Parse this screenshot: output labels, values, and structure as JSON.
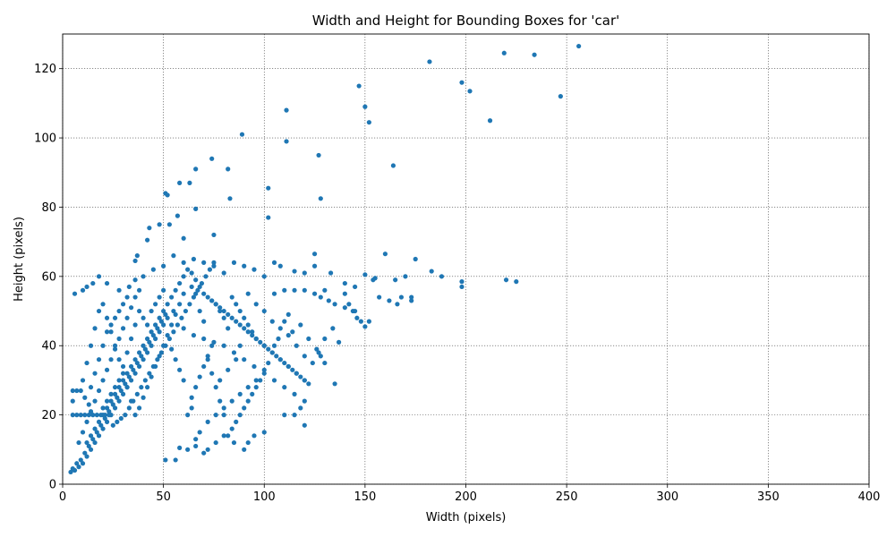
{
  "chart_data": {
    "type": "scatter",
    "title": "Width and Height for Bounding Boxes for 'car'",
    "xlabel": "Width (pixels)",
    "ylabel": "Height (pixels)",
    "xlim": [
      0,
      400
    ],
    "ylim": [
      0,
      130
    ],
    "xticks": [
      "0",
      "50",
      "100",
      "150",
      "200",
      "250",
      "300",
      "350",
      "400"
    ],
    "yticks": [
      "0",
      "20",
      "40",
      "60",
      "80",
      "100",
      "120"
    ],
    "grid": true,
    "marker_color": "#1f77b4",
    "points": [
      [
        256,
        126.5
      ],
      [
        219,
        124.5
      ],
      [
        234,
        124
      ],
      [
        182,
        122
      ],
      [
        147,
        115
      ],
      [
        198,
        116
      ],
      [
        202,
        113.5
      ],
      [
        247,
        112
      ],
      [
        150,
        109
      ],
      [
        111,
        108
      ],
      [
        212,
        105
      ],
      [
        152,
        104.5
      ],
      [
        89,
        101
      ],
      [
        111,
        99
      ],
      [
        74,
        94
      ],
      [
        127,
        95
      ],
      [
        66,
        91
      ],
      [
        82,
        91
      ],
      [
        164,
        92
      ],
      [
        58,
        87
      ],
      [
        63,
        87
      ],
      [
        51,
        84
      ],
      [
        52,
        83.5
      ],
      [
        102,
        85.5
      ],
      [
        83,
        82.5
      ],
      [
        128,
        82.5
      ],
      [
        66,
        79.5
      ],
      [
        57,
        77.5
      ],
      [
        102,
        77
      ],
      [
        43,
        74
      ],
      [
        53,
        75
      ],
      [
        48,
        75
      ],
      [
        75,
        72
      ],
      [
        60,
        71
      ],
      [
        42,
        70.5
      ],
      [
        37,
        66
      ],
      [
        36,
        64.5
      ],
      [
        170,
        60
      ],
      [
        183,
        61.5
      ],
      [
        188,
        60
      ],
      [
        198,
        58.5
      ],
      [
        198,
        57
      ],
      [
        220,
        59
      ],
      [
        225,
        58.5
      ],
      [
        175,
        65
      ],
      [
        160,
        66.5
      ],
      [
        150,
        60.5
      ],
      [
        155,
        59.5
      ],
      [
        165,
        59
      ],
      [
        140,
        58
      ],
      [
        145,
        57
      ],
      [
        130,
        56
      ],
      [
        133,
        61
      ],
      [
        125,
        63
      ],
      [
        125,
        66.5
      ],
      [
        120,
        61
      ],
      [
        115,
        61.5
      ],
      [
        108,
        63
      ],
      [
        105,
        64
      ],
      [
        6,
        55
      ],
      [
        10,
        56
      ],
      [
        12,
        57
      ],
      [
        15,
        58
      ],
      [
        18,
        60
      ],
      [
        22,
        58
      ],
      [
        28,
        56
      ],
      [
        33,
        57
      ],
      [
        36,
        59
      ],
      [
        40,
        60
      ],
      [
        45,
        62
      ],
      [
        50,
        63
      ],
      [
        55,
        66
      ],
      [
        60,
        64
      ],
      [
        65,
        65
      ],
      [
        70,
        64
      ],
      [
        75,
        63
      ],
      [
        80,
        61
      ],
      [
        85,
        64
      ],
      [
        90,
        63
      ],
      [
        95,
        62
      ],
      [
        100,
        60
      ],
      [
        92,
        55
      ],
      [
        96,
        52
      ],
      [
        100,
        50
      ],
      [
        104,
        47
      ],
      [
        108,
        45
      ],
      [
        112,
        43
      ],
      [
        116,
        40
      ],
      [
        120,
        37
      ],
      [
        124,
        35
      ],
      [
        127,
        38
      ],
      [
        130,
        42
      ],
      [
        134,
        45
      ],
      [
        137,
        41
      ],
      [
        135,
        29
      ],
      [
        60,
        45
      ],
      [
        65,
        43
      ],
      [
        70,
        42
      ],
      [
        75,
        41
      ],
      [
        80,
        40
      ],
      [
        85,
        38
      ],
      [
        90,
        36
      ],
      [
        95,
        34
      ],
      [
        100,
        32
      ],
      [
        105,
        30
      ],
      [
        110,
        28
      ],
      [
        115,
        26
      ],
      [
        120,
        24
      ],
      [
        100,
        40
      ],
      [
        104,
        38
      ],
      [
        108,
        36
      ],
      [
        112,
        34
      ],
      [
        116,
        32
      ],
      [
        120,
        30
      ],
      [
        115,
        20
      ],
      [
        118,
        22
      ],
      [
        120,
        17
      ],
      [
        110,
        20
      ],
      [
        100,
        15
      ],
      [
        95,
        14
      ],
      [
        92,
        12
      ],
      [
        90,
        10
      ],
      [
        85,
        12
      ],
      [
        80,
        14
      ],
      [
        76,
        12
      ],
      [
        72,
        10
      ],
      [
        70,
        9
      ],
      [
        66,
        11
      ],
      [
        62,
        10
      ],
      [
        58,
        10.5
      ],
      [
        56,
        7
      ],
      [
        51,
        7
      ],
      [
        66,
        13
      ],
      [
        68,
        15
      ],
      [
        72,
        18
      ],
      [
        76,
        20
      ],
      [
        80,
        22
      ],
      [
        84,
        24
      ],
      [
        88,
        26
      ],
      [
        92,
        28
      ],
      [
        96,
        30
      ],
      [
        64,
        25
      ],
      [
        66,
        28
      ],
      [
        68,
        31
      ],
      [
        70,
        34
      ],
      [
        72,
        37
      ],
      [
        74,
        40
      ],
      [
        60,
        30
      ],
      [
        58,
        33
      ],
      [
        56,
        36
      ],
      [
        54,
        39
      ],
      [
        62,
        20
      ],
      [
        64,
        22
      ],
      [
        78,
        30
      ],
      [
        82,
        33
      ],
      [
        86,
        36
      ],
      [
        88,
        40
      ],
      [
        82,
        45
      ],
      [
        80,
        48
      ],
      [
        78,
        50
      ],
      [
        76,
        52
      ],
      [
        74,
        53
      ],
      [
        70,
        47
      ],
      [
        68,
        50
      ],
      [
        66,
        55
      ],
      [
        64,
        57
      ],
      [
        55,
        50
      ],
      [
        52,
        48
      ],
      [
        50,
        46
      ],
      [
        48,
        44
      ],
      [
        46,
        42
      ],
      [
        44,
        40
      ],
      [
        42,
        38
      ],
      [
        40,
        36
      ],
      [
        38,
        34
      ],
      [
        36,
        32
      ],
      [
        34,
        30
      ],
      [
        32,
        28
      ],
      [
        30,
        26
      ],
      [
        28,
        24
      ],
      [
        26,
        22
      ],
      [
        24,
        20
      ],
      [
        22,
        18
      ],
      [
        20,
        16
      ],
      [
        18,
        14
      ],
      [
        16,
        12
      ],
      [
        14,
        10
      ],
      [
        12,
        8
      ],
      [
        10,
        6
      ],
      [
        8,
        5
      ],
      [
        6,
        4
      ],
      [
        4,
        3.5
      ],
      [
        5,
        4.5
      ],
      [
        7,
        6
      ],
      [
        9,
        7
      ],
      [
        11,
        9
      ],
      [
        13,
        11
      ],
      [
        15,
        13
      ],
      [
        17,
        15
      ],
      [
        19,
        17
      ],
      [
        21,
        19
      ],
      [
        23,
        21
      ],
      [
        25,
        23
      ],
      [
        27,
        25
      ],
      [
        29,
        27
      ],
      [
        31,
        29
      ],
      [
        33,
        31
      ],
      [
        35,
        33
      ],
      [
        37,
        35
      ],
      [
        39,
        37
      ],
      [
        41,
        39
      ],
      [
        43,
        41
      ],
      [
        45,
        43
      ],
      [
        47,
        45
      ],
      [
        49,
        47
      ],
      [
        51,
        49
      ],
      [
        8,
        12
      ],
      [
        10,
        15
      ],
      [
        12,
        18
      ],
      [
        14,
        21
      ],
      [
        16,
        24
      ],
      [
        18,
        27
      ],
      [
        20,
        30
      ],
      [
        22,
        33
      ],
      [
        24,
        36
      ],
      [
        26,
        39
      ],
      [
        28,
        42
      ],
      [
        30,
        45
      ],
      [
        32,
        48
      ],
      [
        34,
        51
      ],
      [
        36,
        54
      ],
      [
        38,
        56
      ],
      [
        10,
        30
      ],
      [
        12,
        35
      ],
      [
        14,
        40
      ],
      [
        16,
        45
      ],
      [
        18,
        50
      ],
      [
        20,
        52
      ],
      [
        22,
        48
      ],
      [
        24,
        44
      ],
      [
        26,
        40
      ],
      [
        28,
        36
      ],
      [
        30,
        32
      ],
      [
        32,
        28
      ],
      [
        34,
        24
      ],
      [
        36,
        20
      ],
      [
        38,
        22
      ],
      [
        40,
        25
      ],
      [
        42,
        28
      ],
      [
        44,
        31
      ],
      [
        46,
        34
      ],
      [
        48,
        37
      ],
      [
        50,
        40
      ],
      [
        52,
        43
      ],
      [
        54,
        46
      ],
      [
        56,
        49
      ],
      [
        58,
        52
      ],
      [
        60,
        55
      ],
      [
        14,
        28
      ],
      [
        16,
        32
      ],
      [
        18,
        36
      ],
      [
        20,
        40
      ],
      [
        22,
        44
      ],
      [
        24,
        46
      ],
      [
        26,
        48
      ],
      [
        28,
        50
      ],
      [
        30,
        52
      ],
      [
        32,
        54
      ],
      [
        20,
        22
      ],
      [
        22,
        24
      ],
      [
        24,
        26
      ],
      [
        26,
        28
      ],
      [
        28,
        30
      ],
      [
        30,
        34
      ],
      [
        32,
        38
      ],
      [
        34,
        42
      ],
      [
        36,
        46
      ],
      [
        38,
        50
      ],
      [
        40,
        48
      ],
      [
        42,
        46
      ],
      [
        44,
        50
      ],
      [
        46,
        52
      ],
      [
        48,
        54
      ],
      [
        50,
        56
      ],
      [
        12,
        12
      ],
      [
        14,
        14
      ],
      [
        16,
        16
      ],
      [
        18,
        18
      ],
      [
        20,
        20
      ],
      [
        22,
        22
      ],
      [
        24,
        24
      ],
      [
        26,
        26
      ],
      [
        28,
        28
      ],
      [
        30,
        30
      ],
      [
        32,
        32
      ],
      [
        34,
        34
      ],
      [
        36,
        36
      ],
      [
        38,
        38
      ],
      [
        40,
        40
      ],
      [
        42,
        42
      ],
      [
        44,
        44
      ],
      [
        46,
        46
      ],
      [
        48,
        48
      ],
      [
        50,
        50
      ],
      [
        52,
        52
      ],
      [
        54,
        54
      ],
      [
        56,
        56
      ],
      [
        58,
        58
      ],
      [
        25,
        17
      ],
      [
        27,
        18
      ],
      [
        29,
        19
      ],
      [
        31,
        20
      ],
      [
        33,
        22
      ],
      [
        35,
        24
      ],
      [
        37,
        26
      ],
      [
        39,
        28
      ],
      [
        41,
        30
      ],
      [
        43,
        32
      ],
      [
        45,
        34
      ],
      [
        47,
        36
      ],
      [
        49,
        38
      ],
      [
        51,
        40
      ],
      [
        53,
        42
      ],
      [
        55,
        44
      ],
      [
        57,
        46
      ],
      [
        59,
        48
      ],
      [
        61,
        50
      ],
      [
        63,
        52
      ],
      [
        65,
        54
      ],
      [
        67,
        56
      ],
      [
        69,
        58
      ],
      [
        71,
        60
      ],
      [
        73,
        62
      ],
      [
        75,
        64
      ],
      [
        5,
        20
      ],
      [
        5,
        24
      ],
      [
        5,
        27
      ],
      [
        7,
        27
      ],
      [
        9,
        27
      ],
      [
        11,
        25
      ],
      [
        13,
        23
      ],
      [
        7,
        20
      ],
      [
        9,
        20
      ],
      [
        11,
        20
      ],
      [
        13,
        20
      ],
      [
        15,
        20
      ],
      [
        17,
        20
      ],
      [
        19,
        20
      ],
      [
        21,
        20
      ],
      [
        23,
        20
      ],
      [
        140,
        55
      ],
      [
        142,
        52
      ],
      [
        144,
        50
      ],
      [
        146,
        48
      ],
      [
        148,
        47
      ],
      [
        150,
        45.5
      ],
      [
        152,
        47
      ],
      [
        154,
        59
      ],
      [
        157,
        54
      ],
      [
        162,
        53
      ],
      [
        166,
        52
      ],
      [
        168,
        54
      ],
      [
        173,
        53
      ],
      [
        173,
        54
      ],
      [
        110,
        47
      ],
      [
        112,
        49
      ],
      [
        114,
        44
      ],
      [
        118,
        46
      ],
      [
        122,
        42
      ],
      [
        126,
        39
      ],
      [
        128,
        37
      ],
      [
        130,
        35
      ],
      [
        105,
        40
      ],
      [
        107,
        42
      ],
      [
        102,
        35
      ],
      [
        100,
        33
      ],
      [
        98,
        30
      ],
      [
        96,
        28
      ],
      [
        94,
        26
      ],
      [
        92,
        24
      ],
      [
        90,
        22
      ],
      [
        88,
        20
      ],
      [
        86,
        18
      ],
      [
        84,
        16
      ],
      [
        82,
        14
      ],
      [
        80,
        20
      ],
      [
        78,
        24
      ],
      [
        76,
        28
      ],
      [
        74,
        32
      ],
      [
        72,
        36
      ],
      [
        96,
        42
      ],
      [
        94,
        44
      ],
      [
        92,
        46
      ],
      [
        90,
        48
      ],
      [
        88,
        50
      ],
      [
        86,
        52
      ],
      [
        84,
        54
      ],
      [
        105,
        55
      ],
      [
        110,
        56
      ],
      [
        115,
        56
      ],
      [
        120,
        56
      ],
      [
        125,
        55
      ],
      [
        128,
        54
      ],
      [
        132,
        53
      ],
      [
        135,
        52
      ],
      [
        140,
        51
      ],
      [
        145,
        50
      ],
      [
        60,
        60
      ],
      [
        62,
        62
      ],
      [
        64,
        61
      ],
      [
        66,
        59
      ],
      [
        68,
        57
      ],
      [
        70,
        55
      ],
      [
        72,
        54
      ],
      [
        74,
        53
      ],
      [
        76,
        52
      ],
      [
        78,
        51
      ],
      [
        80,
        50
      ],
      [
        82,
        49
      ],
      [
        84,
        48
      ],
      [
        86,
        47
      ],
      [
        88,
        46
      ],
      [
        90,
        45
      ],
      [
        92,
        44
      ],
      [
        94,
        43
      ],
      [
        96,
        42
      ],
      [
        98,
        41
      ],
      [
        100,
        40
      ],
      [
        102,
        39
      ],
      [
        104,
        38
      ],
      [
        106,
        37
      ],
      [
        108,
        36
      ],
      [
        110,
        35
      ],
      [
        112,
        34
      ],
      [
        114,
        33
      ],
      [
        116,
        32
      ],
      [
        118,
        31
      ],
      [
        120,
        30
      ],
      [
        122,
        29
      ]
    ]
  }
}
